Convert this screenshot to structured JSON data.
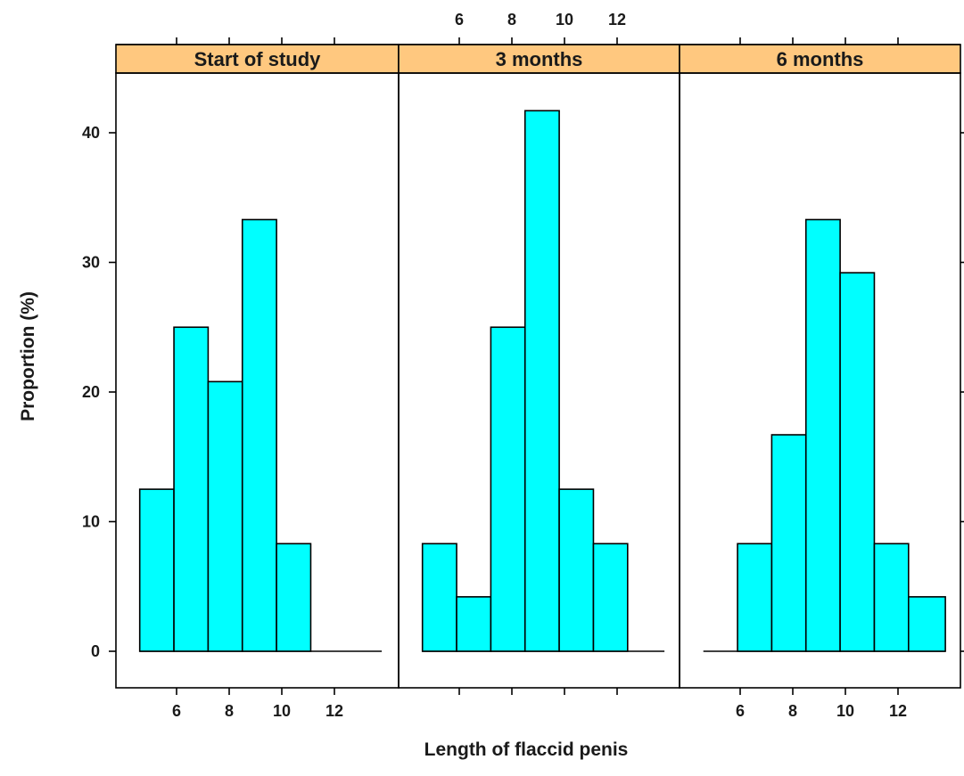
{
  "chart_data": {
    "type": "bar",
    "subtype": "histogram",
    "xlabel": "Length of flaccid penis",
    "ylabel": "Proportion (%)",
    "ylim": [
      0,
      45
    ],
    "xlim": [
      4,
      14
    ],
    "y_ticks": [
      0,
      10,
      20,
      30,
      40
    ],
    "x_ticks": [
      6,
      8,
      10,
      12
    ],
    "strip_color": "#ffc87f",
    "bar_color": "#00ffff",
    "panels": [
      {
        "name": "Start of study",
        "bins": [
          {
            "x0": 4.6,
            "x1": 5.9,
            "value": 12.5
          },
          {
            "x0": 5.9,
            "x1": 7.2,
            "value": 25.0
          },
          {
            "x0": 7.2,
            "x1": 8.5,
            "value": 20.8
          },
          {
            "x0": 8.5,
            "x1": 9.8,
            "value": 33.3
          },
          {
            "x0": 9.8,
            "x1": 11.1,
            "value": 8.3
          },
          {
            "x0": 11.1,
            "x1": 12.4,
            "value": 0
          },
          {
            "x0": 12.4,
            "x1": 13.8,
            "value": 0
          }
        ]
      },
      {
        "name": "3 months",
        "bins": [
          {
            "x0": 4.6,
            "x1": 5.9,
            "value": 8.3
          },
          {
            "x0": 5.9,
            "x1": 7.2,
            "value": 4.2
          },
          {
            "x0": 7.2,
            "x1": 8.5,
            "value": 25.0
          },
          {
            "x0": 8.5,
            "x1": 9.8,
            "value": 41.7
          },
          {
            "x0": 9.8,
            "x1": 11.1,
            "value": 12.5
          },
          {
            "x0": 11.1,
            "x1": 12.4,
            "value": 8.3
          },
          {
            "x0": 12.4,
            "x1": 13.8,
            "value": 0
          }
        ]
      },
      {
        "name": "6 months",
        "bins": [
          {
            "x0": 4.6,
            "x1": 5.9,
            "value": 0
          },
          {
            "x0": 5.9,
            "x1": 7.2,
            "value": 8.3
          },
          {
            "x0": 7.2,
            "x1": 8.5,
            "value": 16.7
          },
          {
            "x0": 8.5,
            "x1": 9.8,
            "value": 33.3
          },
          {
            "x0": 9.8,
            "x1": 11.1,
            "value": 29.2
          },
          {
            "x0": 11.1,
            "x1": 12.4,
            "value": 8.3
          },
          {
            "x0": 12.4,
            "x1": 13.8,
            "value": 4.2
          }
        ]
      }
    ]
  }
}
